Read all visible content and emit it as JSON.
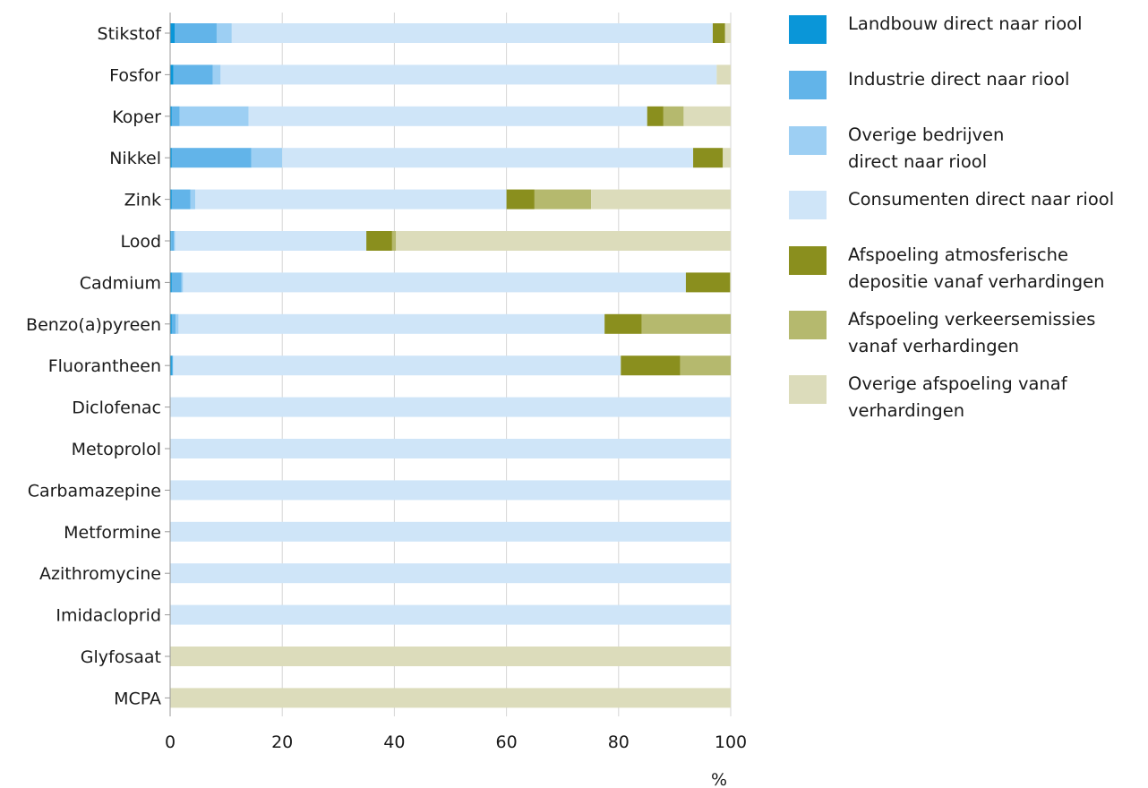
{
  "chart_data": {
    "type": "bar",
    "orientation": "horizontal",
    "stacked": true,
    "categories": [
      "Stikstof",
      "Fosfor",
      "Koper",
      "Nikkel",
      "Zink",
      "Lood",
      "Cadmium",
      "Benzo(a)pyreen",
      "Fluorantheen",
      "Diclofenac",
      "Metoprolol",
      "Carbamazepine",
      "Metformine",
      "Azithromycine",
      "Imidacloprid",
      "Glyfosaat",
      "MCPA"
    ],
    "series": [
      {
        "name": "Landbouw direct naar riool",
        "color": "#0a96d8",
        "values": [
          0.8,
          0.6,
          0.3,
          0.3,
          0.3,
          0.2,
          0.3,
          0.3,
          0.3,
          0,
          0,
          0,
          0,
          0,
          0,
          0,
          0
        ]
      },
      {
        "name": "Industrie direct naar riool",
        "color": "#62b4e9",
        "values": [
          7.5,
          7.0,
          1.4,
          14.2,
          3.3,
          0.5,
          1.7,
          0.7,
          0.2,
          0,
          0,
          0,
          0,
          0,
          0,
          0,
          0
        ]
      },
      {
        "name": "Overige bedrijven direct naar riool",
        "color": "#9dcff3",
        "values": [
          2.7,
          1.4,
          12.3,
          5.5,
          0.9,
          0.2,
          0.3,
          0.5,
          0.1,
          0,
          0,
          0,
          0,
          0,
          0,
          0,
          0
        ]
      },
      {
        "name": "Consumenten direct naar riool",
        "color": "#cfe5f8",
        "values": [
          85.8,
          88.5,
          71.1,
          73.3,
          55.5,
          34.1,
          89.7,
          76.0,
          79.8,
          100,
          100,
          100,
          100,
          100,
          100,
          0,
          0
        ]
      },
      {
        "name": "Afspoeling atmosferische depositie vanaf verhardingen",
        "color": "#8a8f1e",
        "values": [
          2.2,
          0,
          2.9,
          5.3,
          5.0,
          4.6,
          7.9,
          6.6,
          10.6,
          0,
          0,
          0,
          0,
          0,
          0,
          0,
          0
        ]
      },
      {
        "name": "Afspoeling verkeersemissies vanaf verhardingen",
        "color": "#b5b96e",
        "values": [
          0,
          0,
          3.6,
          0,
          10.1,
          0.7,
          0,
          15.9,
          9.0,
          0,
          0,
          0,
          0,
          0,
          0,
          0,
          0
        ]
      },
      {
        "name": "Overige afspoeling vanaf verhardingen",
        "color": "#dcdcbb",
        "values": [
          1.0,
          2.5,
          8.4,
          1.4,
          24.9,
          59.7,
          0.1,
          0,
          0,
          0,
          0,
          0,
          0,
          0,
          0,
          100,
          100
        ]
      }
    ],
    "xticks": [
      "0",
      "20",
      "40",
      "60",
      "80",
      "100"
    ],
    "xlim": [
      0,
      100
    ],
    "xlabel": "%",
    "grid": true,
    "legend_position": "right"
  },
  "legend": {
    "items": [
      {
        "label": "Landbouw direct naar riool",
        "color": "#0a96d8"
      },
      {
        "label": "Industrie direct naar riool",
        "color": "#62b4e9"
      },
      {
        "label": "Overige bedrijven direct naar riool",
        "color": "#9dcff3"
      },
      {
        "label": "Consumenten direct naar riool",
        "color": "#cfe5f8"
      },
      {
        "label": "Afspoeling atmosferische depositie vanaf verhardingen",
        "color": "#8a8f1e"
      },
      {
        "label": "Afspoeling verkeersemissies vanaf verhardingen",
        "color": "#b5b96e"
      },
      {
        "label": "Overige afspoeling vanaf verhardingen",
        "color": "#dcdcbb"
      }
    ]
  }
}
